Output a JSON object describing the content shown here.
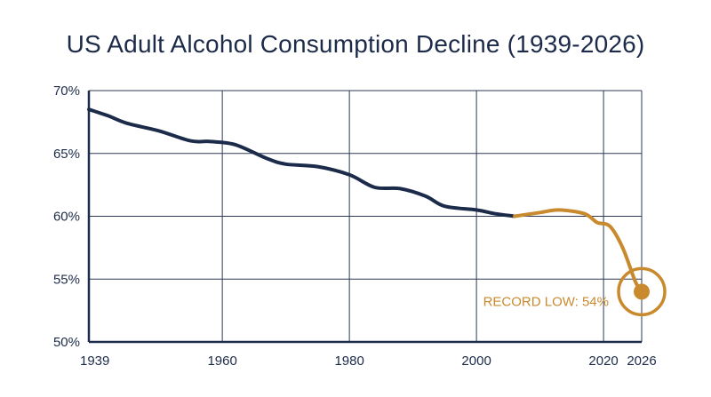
{
  "chart_data": {
    "type": "line",
    "title": "US Adult Alcohol Consumption Decline (1939-2026)",
    "xlabel": "",
    "ylabel": "",
    "xlim": [
      1939,
      2026
    ],
    "ylim": [
      50,
      70
    ],
    "x_ticks": [
      1939,
      1960,
      1980,
      2000,
      2020,
      2026
    ],
    "y_ticks": [
      {
        "value": 50,
        "label": "50%"
      },
      {
        "value": 55,
        "label": "55%"
      },
      {
        "value": 60,
        "label": "60%"
      },
      {
        "value": 65,
        "label": "65%"
      },
      {
        "value": 70,
        "label": "70%"
      }
    ],
    "grid": true,
    "colors": {
      "historical": "#1c2b4a",
      "recent": "#c98a2e",
      "grid": "#2b3a55",
      "axis": "#1c2b4a"
    },
    "series": [
      {
        "segment": "historical",
        "color": "#1c2b4a",
        "points": [
          [
            1939,
            68.5
          ],
          [
            1942,
            68.0
          ],
          [
            1945,
            67.4
          ],
          [
            1950,
            66.8
          ],
          [
            1955,
            66.0
          ],
          [
            1958,
            65.95
          ],
          [
            1962,
            65.7
          ],
          [
            1967,
            64.6
          ],
          [
            1970,
            64.15
          ],
          [
            1975,
            63.95
          ],
          [
            1980,
            63.3
          ],
          [
            1984,
            62.3
          ],
          [
            1988,
            62.2
          ],
          [
            1992,
            61.6
          ],
          [
            1995,
            60.8
          ],
          [
            2000,
            60.5
          ],
          [
            2003,
            60.2
          ],
          [
            2006,
            60.0
          ]
        ]
      },
      {
        "segment": "recent",
        "color": "#c98a2e",
        "points": [
          [
            2006,
            60.0
          ],
          [
            2010,
            60.3
          ],
          [
            2013,
            60.5
          ],
          [
            2017,
            60.2
          ],
          [
            2019,
            59.5
          ],
          [
            2021,
            59.2
          ],
          [
            2023,
            57.5
          ],
          [
            2025,
            54.8
          ],
          [
            2026,
            54.0
          ]
        ]
      }
    ],
    "annotation": {
      "text": "RECORD LOW: 54%",
      "x": 2026,
      "y": 54,
      "color": "#c98a2e"
    }
  }
}
